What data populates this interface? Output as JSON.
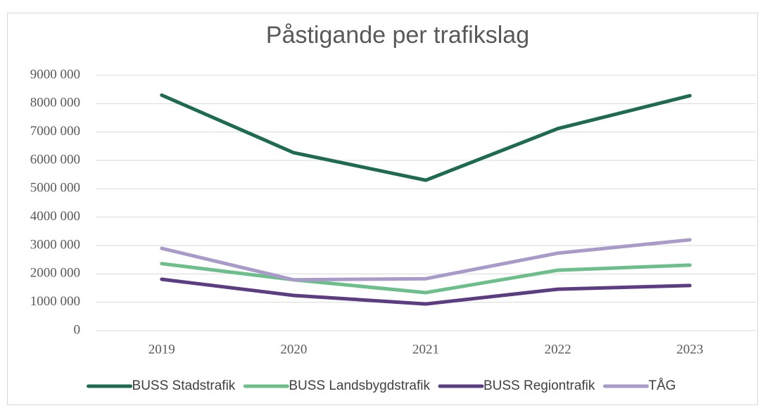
{
  "chart_data": {
    "type": "line",
    "title": "Påstigande per trafikslag",
    "categories": [
      "2019",
      "2020",
      "2021",
      "2022",
      "2023"
    ],
    "series": [
      {
        "name": "BUSS Stadstrafik",
        "color": "#1e6b4f",
        "values": [
          8300000,
          6270000,
          5300000,
          7120000,
          8280000
        ]
      },
      {
        "name": "BUSS Landsbygdstrafik",
        "color": "#6cbf8a",
        "values": [
          2360000,
          1790000,
          1340000,
          2130000,
          2310000
        ]
      },
      {
        "name": "BUSS Regiontrafik",
        "color": "#5c3d82",
        "values": [
          1810000,
          1240000,
          940000,
          1460000,
          1590000
        ]
      },
      {
        "name": "TÅG",
        "color": "#a99bc9",
        "values": [
          2900000,
          1790000,
          1830000,
          2730000,
          3200000
        ]
      }
    ],
    "ylim": [
      0,
      9000000
    ],
    "yticks": [
      0,
      {
        "value": 1000000,
        "label": "1000 000"
      },
      {
        "value": 2000000,
        "label": "2000 000"
      },
      {
        "value": 3000000,
        "label": "3000 000"
      },
      {
        "value": 4000000,
        "label": "4000 000"
      },
      {
        "value": 5000000,
        "label": "5000 000"
      },
      {
        "value": 6000000,
        "label": "6000 000"
      },
      {
        "value": 7000000,
        "label": "7000 000"
      },
      {
        "value": 8000000,
        "label": "8000 000"
      },
      {
        "value": 9000000,
        "label": "9000 000"
      }
    ],
    "grid": true,
    "legend": "bottom"
  }
}
